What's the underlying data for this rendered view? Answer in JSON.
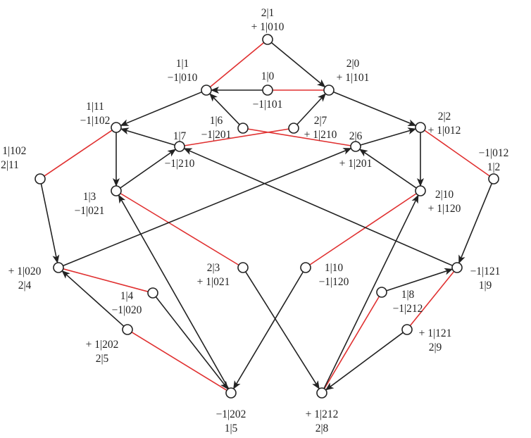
{
  "graph": {
    "nodes": [
      {
        "id": "2|1",
        "lines": [
          "2|1",
          "+ 1|010"
        ]
      },
      {
        "id": "1|1",
        "lines": [
          "1|1",
          "−1|010"
        ]
      },
      {
        "id": "1|0",
        "lines": [
          "1|0",
          "−1|101"
        ]
      },
      {
        "id": "2|0",
        "lines": [
          "2|0",
          "+ 1|101"
        ]
      },
      {
        "id": "1|11",
        "lines": [
          "1|11",
          "−1|102"
        ]
      },
      {
        "id": "1|6",
        "lines": [
          "1|6",
          "−1|201"
        ]
      },
      {
        "id": "2|7",
        "lines": [
          "2|7",
          "+ 1|210"
        ]
      },
      {
        "id": "2|2",
        "lines": [
          "2|2",
          "+ 1|012"
        ]
      },
      {
        "id": "1|7",
        "lines": [
          "1|7",
          "−1|210"
        ]
      },
      {
        "id": "2|6",
        "lines": [
          "2|6",
          "+ 1|201"
        ]
      },
      {
        "id": "2|11",
        "lines": [
          "+ 1|102",
          "2|11"
        ]
      },
      {
        "id": "1|2",
        "lines": [
          "−1|012",
          "1|2"
        ]
      },
      {
        "id": "1|3",
        "lines": [
          "1|3",
          "−1|021"
        ]
      },
      {
        "id": "2|10",
        "lines": [
          "2|10",
          "+ 1|120"
        ]
      },
      {
        "id": "2|4",
        "lines": [
          "+ 1|020",
          "2|4"
        ]
      },
      {
        "id": "2|3",
        "lines": [
          "2|3",
          "+ 1|021"
        ]
      },
      {
        "id": "1|10",
        "lines": [
          "1|10",
          "−1|120"
        ]
      },
      {
        "id": "1|9",
        "lines": [
          "−1|121",
          "1|9"
        ]
      },
      {
        "id": "1|4",
        "lines": [
          "1|4",
          "−1|020"
        ]
      },
      {
        "id": "1|8",
        "lines": [
          "1|8",
          "−1|212"
        ]
      },
      {
        "id": "2|5",
        "lines": [
          "+ 1|202",
          "2|5"
        ]
      },
      {
        "id": "2|9",
        "lines": [
          "+ 1|121",
          "2|9"
        ]
      },
      {
        "id": "1|5",
        "lines": [
          "−1|202",
          "1|5"
        ]
      },
      {
        "id": "2|8",
        "lines": [
          "+ 1|212",
          "2|8"
        ]
      }
    ],
    "edges_black": [
      {
        "from": "2|1",
        "to": "2|0"
      },
      {
        "from": "1|0",
        "to": "1|1"
      },
      {
        "from": "1|1",
        "to": "1|11"
      },
      {
        "from": "2|0",
        "to": "2|2"
      },
      {
        "from": "1|6",
        "to": "1|1"
      },
      {
        "from": "2|7",
        "to": "2|0"
      },
      {
        "from": "1|11",
        "to": "1|3"
      },
      {
        "from": "1|7",
        "to": "1|11"
      },
      {
        "from": "1|3",
        "to": "1|7"
      },
      {
        "from": "2|2",
        "to": "2|10"
      },
      {
        "from": "2|6",
        "to": "2|2"
      },
      {
        "from": "2|10",
        "to": "2|6"
      },
      {
        "from": "2|11",
        "to": "2|4"
      },
      {
        "from": "1|2",
        "to": "1|9"
      },
      {
        "from": "2|4",
        "to": "2|6"
      },
      {
        "from": "1|9",
        "to": "1|7"
      },
      {
        "from": "2|5",
        "to": "2|4"
      },
      {
        "from": "1|4",
        "to": "1|5"
      },
      {
        "from": "1|5",
        "to": "1|3"
      },
      {
        "from": "2|3",
        "to": "2|8"
      },
      {
        "from": "1|10",
        "to": "1|5"
      },
      {
        "from": "2|8",
        "to": "2|10"
      },
      {
        "from": "1|8",
        "to": "1|9"
      },
      {
        "from": "2|9",
        "to": "2|8"
      }
    ],
    "edges_red": [
      {
        "from": "2|1",
        "to": "1|1"
      },
      {
        "from": "1|0",
        "to": "2|0"
      },
      {
        "from": "1|11",
        "to": "2|11"
      },
      {
        "from": "2|2",
        "to": "1|2"
      },
      {
        "from": "1|6",
        "to": "2|6"
      },
      {
        "from": "2|7",
        "to": "1|7"
      },
      {
        "from": "1|3",
        "to": "2|3"
      },
      {
        "from": "2|10",
        "to": "1|10"
      },
      {
        "from": "2|4",
        "to": "1|4"
      },
      {
        "from": "2|5",
        "to": "1|5"
      },
      {
        "from": "1|9",
        "to": "2|9"
      },
      {
        "from": "1|8",
        "to": "2|8"
      }
    ],
    "colors": {
      "black_edge": "#222222",
      "red_edge": "#e03030",
      "node_fill": "#ffffff"
    }
  }
}
